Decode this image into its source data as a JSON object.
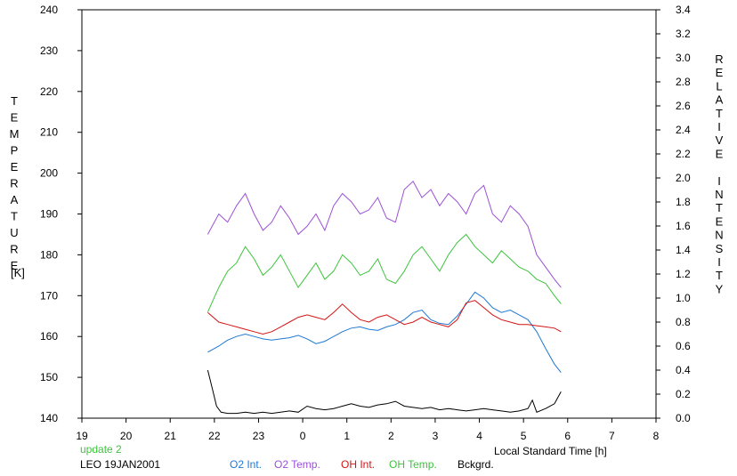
{
  "chart_data": {
    "type": "line",
    "left_axis": {
      "label": "TEMPERATURE",
      "unit": "[K]",
      "ylim": [
        140,
        240
      ],
      "ticks": [
        "140",
        "150",
        "160",
        "170",
        "180",
        "190",
        "200",
        "210",
        "220",
        "230",
        "240"
      ]
    },
    "right_axis": {
      "label": "RELATIVE INTENSITY",
      "ylim": [
        0.0,
        3.4
      ],
      "ticks": [
        "0.0",
        "0.2",
        "0.4",
        "0.6",
        "0.8",
        "1.0",
        "1.2",
        "1.4",
        "1.6",
        "1.8",
        "2.0",
        "2.2",
        "2.4",
        "2.6",
        "2.8",
        "3.0",
        "3.2",
        "3.4"
      ]
    },
    "x_axis": {
      "label": "Local Standard Time [h]",
      "xlim": [
        19,
        32
      ],
      "ticks": [
        "19",
        "20",
        "21",
        "22",
        "23",
        "0",
        "1",
        "2",
        "3",
        "4",
        "5",
        "6",
        "7",
        "8"
      ]
    },
    "annotations": {
      "update": "update 2",
      "station": "LEO 19JAN2001"
    },
    "legend": [
      "O2 Int.",
      "O2 Temp.",
      "OH Int.",
      "OH Temp.",
      "Bckgrd."
    ],
    "series": [
      {
        "name": "O2 Temp.",
        "axis": "left",
        "color": "#9b4fd6",
        "x": [
          21.85,
          22.1,
          22.3,
          22.5,
          22.7,
          22.9,
          23.1,
          23.3,
          23.5,
          23.7,
          23.9,
          24.1,
          24.3,
          24.5,
          24.7,
          24.9,
          25.1,
          25.3,
          25.5,
          25.7,
          25.9,
          26.1,
          26.3,
          26.5,
          26.7,
          26.9,
          27.1,
          27.3,
          27.5,
          27.7,
          27.9,
          28.1,
          28.3,
          28.5,
          28.7,
          28.9,
          29.1,
          29.3,
          29.5,
          29.7,
          29.85
        ],
        "values": [
          185,
          190,
          188,
          192,
          195,
          190,
          186,
          188,
          192,
          189,
          185,
          187,
          190,
          186,
          192,
          195,
          193,
          190,
          191,
          194,
          189,
          188,
          196,
          198,
          194,
          196,
          192,
          195,
          193,
          190,
          195,
          197,
          190,
          188,
          192,
          190,
          187,
          180,
          177,
          174,
          172
        ]
      },
      {
        "name": "OH Temp.",
        "axis": "left",
        "color": "#3cc43c",
        "x": [
          21.85,
          22.1,
          22.3,
          22.5,
          22.7,
          22.9,
          23.1,
          23.3,
          23.5,
          23.7,
          23.9,
          24.1,
          24.3,
          24.5,
          24.7,
          24.9,
          25.1,
          25.3,
          25.5,
          25.7,
          25.9,
          26.1,
          26.3,
          26.5,
          26.7,
          26.9,
          27.1,
          27.3,
          27.5,
          27.7,
          27.9,
          28.1,
          28.3,
          28.5,
          28.7,
          28.9,
          29.1,
          29.3,
          29.5,
          29.7,
          29.85
        ],
        "values": [
          166,
          172,
          176,
          178,
          182,
          179,
          175,
          177,
          180,
          176,
          172,
          175,
          178,
          174,
          176,
          180,
          178,
          175,
          176,
          179,
          174,
          173,
          176,
          180,
          182,
          179,
          176,
          180,
          183,
          185,
          182,
          180,
          178,
          181,
          179,
          177,
          176,
          174,
          173,
          170,
          168
        ]
      },
      {
        "name": "O2 Int.",
        "axis": "right",
        "color": "#1f78d4",
        "x": [
          21.85,
          22.1,
          22.3,
          22.5,
          22.7,
          22.9,
          23.1,
          23.3,
          23.5,
          23.7,
          23.9,
          24.1,
          24.3,
          24.5,
          24.7,
          24.9,
          25.1,
          25.3,
          25.5,
          25.7,
          25.9,
          26.1,
          26.3,
          26.5,
          26.7,
          26.9,
          27.1,
          27.3,
          27.5,
          27.7,
          27.9,
          28.1,
          28.3,
          28.5,
          28.7,
          28.9,
          29.1,
          29.3,
          29.5,
          29.7,
          29.85
        ],
        "values": [
          0.55,
          0.6,
          0.65,
          0.68,
          0.7,
          0.68,
          0.66,
          0.65,
          0.66,
          0.67,
          0.69,
          0.66,
          0.62,
          0.64,
          0.68,
          0.72,
          0.75,
          0.76,
          0.74,
          0.73,
          0.76,
          0.78,
          0.82,
          0.88,
          0.9,
          0.82,
          0.79,
          0.78,
          0.85,
          0.95,
          1.05,
          1.0,
          0.92,
          0.88,
          0.9,
          0.86,
          0.82,
          0.72,
          0.58,
          0.45,
          0.38
        ]
      },
      {
        "name": "OH Int.",
        "axis": "right",
        "color": "#d41414",
        "x": [
          21.85,
          22.1,
          22.3,
          22.5,
          22.7,
          22.9,
          23.1,
          23.3,
          23.5,
          23.7,
          23.9,
          24.1,
          24.3,
          24.5,
          24.7,
          24.9,
          25.1,
          25.3,
          25.5,
          25.7,
          25.9,
          26.1,
          26.3,
          26.5,
          26.7,
          26.9,
          27.1,
          27.3,
          27.5,
          27.7,
          27.9,
          28.1,
          28.3,
          28.5,
          28.7,
          28.9,
          29.1,
          29.3,
          29.5,
          29.7,
          29.85
        ],
        "values": [
          0.88,
          0.8,
          0.78,
          0.76,
          0.74,
          0.72,
          0.7,
          0.72,
          0.76,
          0.8,
          0.84,
          0.86,
          0.84,
          0.82,
          0.88,
          0.95,
          0.88,
          0.82,
          0.8,
          0.84,
          0.86,
          0.82,
          0.78,
          0.8,
          0.84,
          0.8,
          0.78,
          0.76,
          0.82,
          0.96,
          0.98,
          0.92,
          0.86,
          0.82,
          0.8,
          0.78,
          0.78,
          0.77,
          0.76,
          0.75,
          0.72
        ]
      },
      {
        "name": "Bckgrd.",
        "axis": "right",
        "color": "#000000",
        "x": [
          21.85,
          21.95,
          22.05,
          22.15,
          22.3,
          22.5,
          22.7,
          22.9,
          23.1,
          23.3,
          23.5,
          23.7,
          23.9,
          24.1,
          24.3,
          24.5,
          24.7,
          24.9,
          25.1,
          25.3,
          25.5,
          25.7,
          25.9,
          26.1,
          26.3,
          26.5,
          26.7,
          26.9,
          27.1,
          27.3,
          27.5,
          27.7,
          27.9,
          28.1,
          28.3,
          28.5,
          28.7,
          28.9,
          29.1,
          29.2,
          29.3,
          29.5,
          29.7,
          29.85
        ],
        "values": [
          0.4,
          0.25,
          0.1,
          0.05,
          0.04,
          0.04,
          0.05,
          0.04,
          0.05,
          0.04,
          0.05,
          0.06,
          0.05,
          0.1,
          0.08,
          0.07,
          0.08,
          0.1,
          0.12,
          0.1,
          0.09,
          0.11,
          0.12,
          0.14,
          0.1,
          0.09,
          0.08,
          0.09,
          0.07,
          0.08,
          0.07,
          0.06,
          0.07,
          0.08,
          0.07,
          0.06,
          0.05,
          0.06,
          0.08,
          0.15,
          0.05,
          0.08,
          0.12,
          0.22
        ]
      }
    ]
  }
}
